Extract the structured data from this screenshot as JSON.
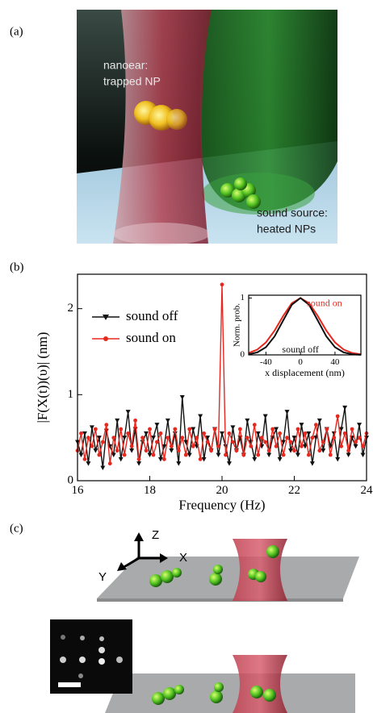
{
  "panel_labels": [
    "(a)",
    "(b)",
    "(c)"
  ],
  "panel_a": {
    "annotations": [
      [
        "nanoear:",
        "trapped NP"
      ],
      [
        "sound source:",
        "heated NPs"
      ]
    ]
  },
  "chart_data": [
    {
      "type": "line",
      "x": [
        16,
        16.1,
        16.2,
        16.3,
        16.4,
        16.5,
        16.6,
        16.7,
        16.8,
        16.9,
        17,
        17.1,
        17.2,
        17.3,
        17.4,
        17.5,
        17.6,
        17.7,
        17.8,
        17.9,
        18,
        18.1,
        18.2,
        18.3,
        18.4,
        18.5,
        18.6,
        18.7,
        18.8,
        18.9,
        19,
        19.1,
        19.2,
        19.3,
        19.4,
        19.5,
        19.6,
        19.7,
        19.8,
        19.9,
        20,
        20.1,
        20.2,
        20.3,
        20.4,
        20.5,
        20.6,
        20.7,
        20.8,
        20.9,
        21,
        21.1,
        21.2,
        21.3,
        21.4,
        21.5,
        21.6,
        21.7,
        21.8,
        21.9,
        22,
        22.1,
        22.2,
        22.3,
        22.4,
        22.5,
        22.6,
        22.7,
        22.8,
        22.9,
        23,
        23.1,
        23.2,
        23.3,
        23.4,
        23.5,
        23.6,
        23.7,
        23.8,
        23.9,
        24
      ],
      "series": [
        {
          "name": "sound off",
          "color": "#111111",
          "marker": "triangle-down",
          "values": [
            0.45,
            0.3,
            0.55,
            0.2,
            0.62,
            0.35,
            0.5,
            0.15,
            0.58,
            0.4,
            0.3,
            0.7,
            0.25,
            0.5,
            0.8,
            0.35,
            0.6,
            0.2,
            0.45,
            0.55,
            0.3,
            0.5,
            0.65,
            0.25,
            0.4,
            0.7,
            0.35,
            0.55,
            0.2,
            0.97,
            0.45,
            0.3,
            0.6,
            0.4,
            0.75,
            0.25,
            0.5,
            0.35,
            0.6,
            0.3,
            0.55,
            0.4,
            0.2,
            0.62,
            0.35,
            0.5,
            0.3,
            0.7,
            0.45,
            0.25,
            0.55,
            0.4,
            0.75,
            0.3,
            0.5,
            0.6,
            0.25,
            0.45,
            0.8,
            0.35,
            0.5,
            0.3,
            0.65,
            0.4,
            0.55,
            0.2,
            0.5,
            0.7,
            0.35,
            0.6,
            0.4,
            0.55,
            0.25,
            0.6,
            0.85,
            0.3,
            0.5,
            0.4,
            0.65,
            0.3,
            0.5
          ]
        },
        {
          "name": "sound on",
          "color": "#e8281e",
          "marker": "circle",
          "values": [
            0.35,
            0.55,
            0.25,
            0.5,
            0.4,
            0.6,
            0.3,
            0.45,
            0.65,
            0.2,
            0.5,
            0.35,
            0.6,
            0.3,
            0.55,
            0.4,
            0.7,
            0.25,
            0.5,
            0.35,
            0.6,
            0.3,
            0.45,
            0.55,
            0.25,
            0.5,
            0.4,
            0.6,
            0.35,
            0.5,
            0.3,
            0.6,
            0.4,
            0.5,
            0.25,
            0.55,
            0.45,
            0.35,
            0.6,
            0.4,
            2.28,
            0.3,
            0.55,
            0.45,
            0.35,
            0.6,
            0.3,
            0.5,
            0.4,
            0.65,
            0.3,
            0.5,
            0.45,
            0.35,
            0.6,
            0.4,
            0.55,
            0.3,
            0.5,
            0.45,
            0.35,
            0.6,
            0.4,
            0.55,
            0.3,
            0.5,
            0.65,
            0.35,
            0.45,
            0.6,
            0.3,
            0.5,
            0.75,
            0.4,
            0.55,
            0.35,
            0.6,
            0.45,
            0.5,
            0.4,
            0.55
          ]
        }
      ],
      "xlim": [
        16,
        24
      ],
      "xticks": [
        16,
        18,
        20,
        22,
        24
      ],
      "ylim": [
        0,
        2.4
      ],
      "yticks": [
        0,
        1,
        2
      ],
      "xlabel": "Frequency (Hz)",
      "ylabel": "|F(X(t))(υ)| (nm)",
      "legend": "upper left"
    },
    {
      "type": "line",
      "x": [
        -60,
        -50,
        -40,
        -30,
        -20,
        -10,
        0,
        10,
        20,
        30,
        40,
        50,
        60,
        70
      ],
      "series": [
        {
          "name": "sound on",
          "color": "#e8281e",
          "values": [
            0.033,
            0.094,
            0.22,
            0.427,
            0.685,
            0.91,
            1,
            0.91,
            0.685,
            0.427,
            0.22,
            0.094,
            0.033,
            0.01
          ]
        },
        {
          "name": "sound off",
          "color": "#111111",
          "values": [
            0.011,
            0.044,
            0.135,
            0.325,
            0.607,
            0.882,
            1,
            0.882,
            0.607,
            0.325,
            0.135,
            0.044,
            0.011,
            0.002
          ]
        }
      ],
      "xlim": [
        -60,
        70
      ],
      "xticks": [
        -40,
        0,
        40
      ],
      "ylim": [
        0,
        1.05
      ],
      "yticks": [
        0,
        1
      ],
      "xlabel": "x displacement (nm)",
      "ylabel": "Norm. prob."
    }
  ],
  "panel_c": {
    "axis_labels": [
      "Z",
      "X",
      "Y"
    ]
  }
}
